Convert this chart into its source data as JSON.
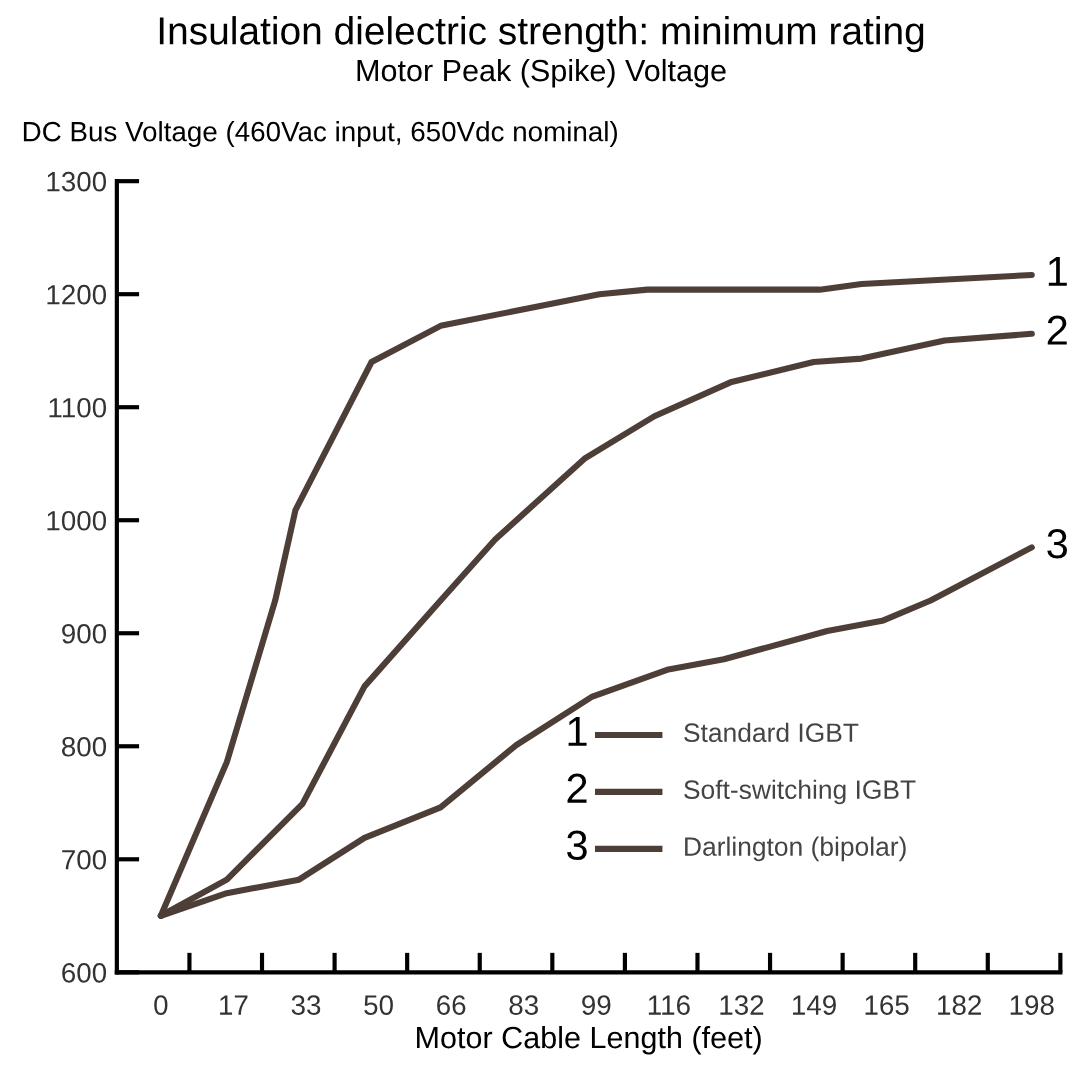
{
  "chart_data": {
    "type": "line",
    "title": "Insulation dielectric strength: minimum rating",
    "subtitle": "Motor Peak (Spike) Voltage",
    "ylabel": "DC Bus Voltage (460Vac input, 650Vdc nominal)",
    "xlabel": "Motor Cable Length (feet)",
    "series": [
      {
        "name": "Standard IGBT",
        "color": "#4d3f38",
        "x": [
          0,
          15,
          26,
          30.6,
          47.9,
          63.6,
          99.7,
          110.6,
          149.8,
          159.3,
          198
        ],
        "values": [
          650,
          786,
          929,
          1009,
          1140,
          1172,
          1200,
          1204,
          1204,
          1209,
          1217
        ]
      },
      {
        "name": "Soft-switching IGBT",
        "color": "#4d3f38",
        "x": [
          0,
          15,
          32.2,
          46.3,
          63.6,
          76,
          96.5,
          112.2,
          129.5,
          148.4,
          159.3,
          178.2,
          198
        ],
        "values": [
          650,
          682,
          749,
          853,
          929,
          983,
          1055,
          1092,
          1122,
          1140,
          1143,
          1159,
          1165
        ]
      },
      {
        "name": "Darlington (bipolar)",
        "color": "#4d3f38",
        "x": [
          0,
          15,
          31.4,
          46.3,
          63.6,
          80.8,
          98.1,
          115.4,
          128,
          151.5,
          164,
          175,
          198
        ],
        "values": [
          650,
          670,
          682,
          719,
          746,
          801,
          844,
          868,
          877,
          902,
          911,
          929,
          976
        ]
      }
    ],
    "annotations": [
      "1",
      "2",
      "3"
    ],
    "xlim": [
      -10,
      204.5
    ],
    "xticks": [
      {
        "value": 0,
        "label": "0"
      },
      {
        "value": 16.5,
        "label": "17"
      },
      {
        "value": 33,
        "label": "33"
      },
      {
        "value": 49.5,
        "label": "50"
      },
      {
        "value": 66,
        "label": "66"
      },
      {
        "value": 82.5,
        "label": "83"
      },
      {
        "value": 99,
        "label": "99"
      },
      {
        "value": 115.5,
        "label": "116"
      },
      {
        "value": 132,
        "label": "132"
      },
      {
        "value": 148.5,
        "label": "149"
      },
      {
        "value": 165,
        "label": "165"
      },
      {
        "value": 181.5,
        "label": "182"
      },
      {
        "value": 198,
        "label": "198"
      },
      {
        "value": 6.5,
        "label": null
      },
      {
        "value": 23,
        "label": null
      },
      {
        "value": 39.5,
        "label": null
      },
      {
        "value": 56,
        "label": null
      },
      {
        "value": 72.5,
        "label": null
      },
      {
        "value": 89,
        "label": null
      },
      {
        "value": 105.5,
        "label": null
      },
      {
        "value": 122,
        "label": null
      },
      {
        "value": 138.5,
        "label": null
      },
      {
        "value": 155,
        "label": null
      },
      {
        "value": 171.5,
        "label": null
      },
      {
        "value": 188,
        "label": null
      },
      {
        "value": 204.5,
        "label": null
      }
    ],
    "ylim": [
      600,
      1300
    ],
    "yticks": [
      600,
      700,
      800,
      900,
      1000,
      1100,
      1200,
      1300
    ],
    "grid": false,
    "legend": "bottom right",
    "line_style": "solid",
    "marker": "none"
  }
}
